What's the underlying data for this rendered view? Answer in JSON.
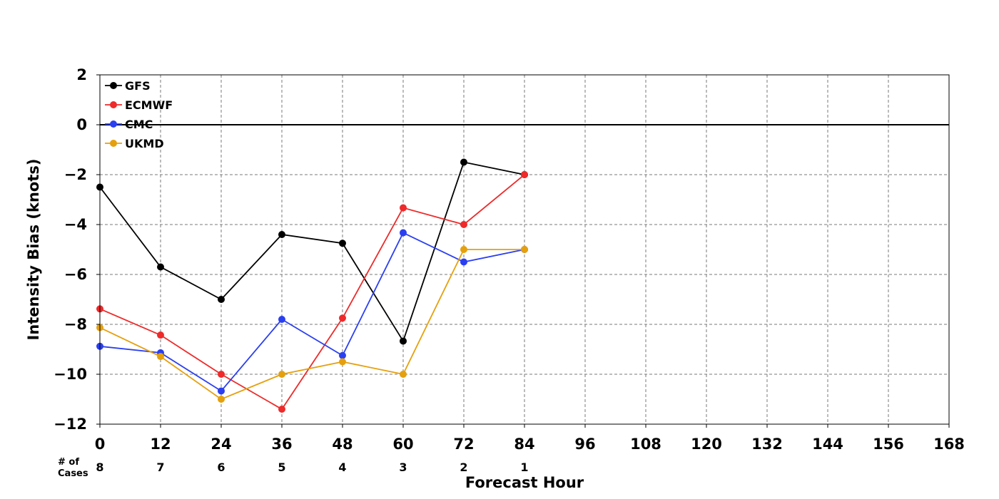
{
  "chart_data": {
    "type": "line",
    "xlabel": "Forecast Hour",
    "ylabel": "Intensity Bias (knots)",
    "xlim": [
      0,
      168
    ],
    "ylim": [
      -12,
      2
    ],
    "x_ticks": [
      0,
      12,
      24,
      36,
      48,
      60,
      72,
      84,
      96,
      108,
      120,
      132,
      144,
      156,
      168
    ],
    "y_ticks": [
      2,
      0,
      -2,
      -4,
      -6,
      -8,
      -10,
      -12
    ],
    "grid": true,
    "grid_style": "dashed",
    "zero_line": true,
    "legend_position": "top-left",
    "cases_label_line1": "# of",
    "cases_label_line2": "Cases",
    "cases": [
      {
        "hour": 0,
        "count": 8
      },
      {
        "hour": 12,
        "count": 7
      },
      {
        "hour": 24,
        "count": 6
      },
      {
        "hour": 36,
        "count": 5
      },
      {
        "hour": 48,
        "count": 4
      },
      {
        "hour": 60,
        "count": 3
      },
      {
        "hour": 72,
        "count": 2
      },
      {
        "hour": 84,
        "count": 1
      }
    ],
    "series": [
      {
        "name": "GFS",
        "color": "#000000",
        "x": [
          0,
          12,
          24,
          36,
          48,
          60,
          72,
          84
        ],
        "values": [
          -2.5,
          -5.7,
          -7.0,
          -4.4,
          -4.75,
          -8.67,
          -1.5,
          -2.0
        ]
      },
      {
        "name": "ECMWF",
        "color": "#ee2a2a",
        "x": [
          0,
          12,
          24,
          36,
          48,
          60,
          72,
          84
        ],
        "values": [
          -7.38,
          -8.43,
          -10.0,
          -11.4,
          -7.75,
          -3.33,
          -4.0,
          -2.0
        ]
      },
      {
        "name": "CMC",
        "color": "#2a3ff0",
        "x": [
          0,
          12,
          24,
          36,
          48,
          60,
          72,
          84
        ],
        "values": [
          -8.88,
          -9.14,
          -10.67,
          -7.8,
          -9.25,
          -4.33,
          -5.5,
          -5.0
        ]
      },
      {
        "name": "UKMD",
        "color": "#e5a00d",
        "x": [
          0,
          12,
          24,
          36,
          48,
          60,
          72,
          84
        ],
        "values": [
          -8.13,
          -9.29,
          -11.0,
          -10.0,
          -9.5,
          -10.0,
          -5.0,
          -5.0
        ]
      }
    ]
  }
}
